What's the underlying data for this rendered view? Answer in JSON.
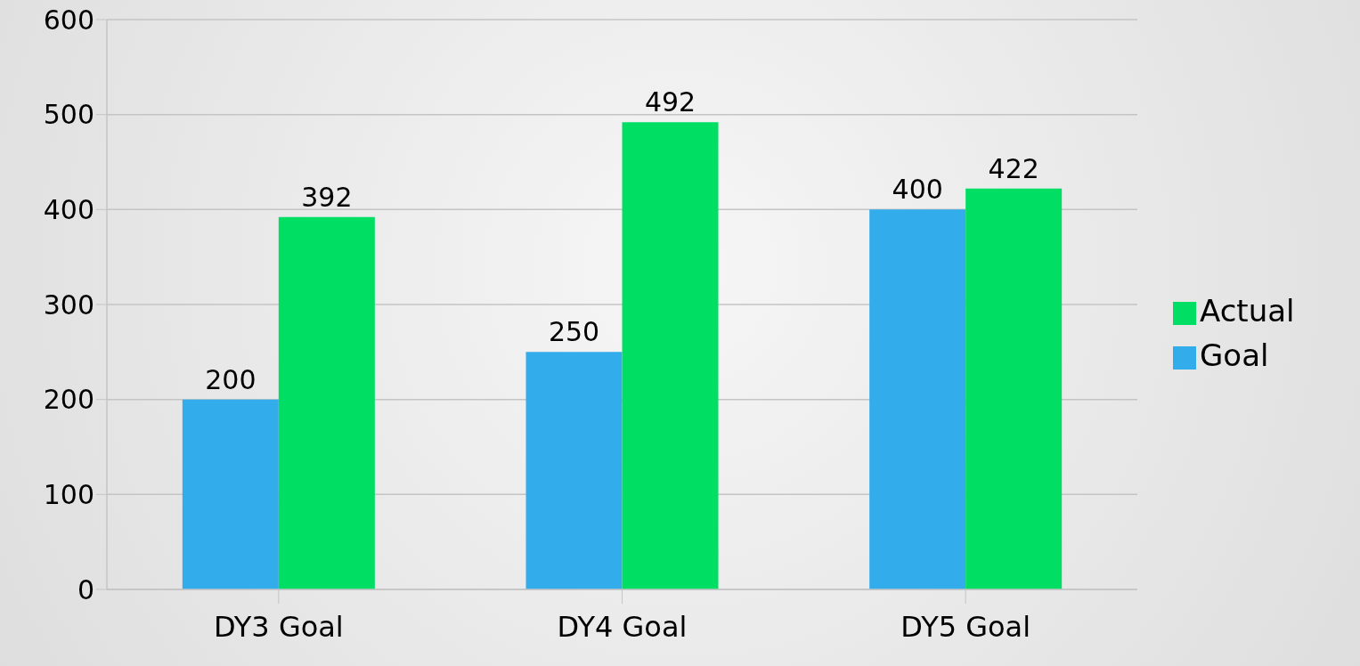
{
  "chart_data": {
    "type": "bar",
    "categories": [
      "DY3 Goal",
      "DY4 Goal",
      "DY5 Goal"
    ],
    "series": [
      {
        "name": "Goal",
        "color": "#33acec",
        "values": [
          200,
          250,
          400
        ]
      },
      {
        "name": "Actual",
        "color": "#00de64",
        "values": [
          392,
          492,
          422
        ]
      }
    ],
    "ylim": [
      0,
      600
    ],
    "yticks": [
      0,
      100,
      200,
      300,
      400,
      500,
      600
    ],
    "grid": "y",
    "legend": "right",
    "data_labels": true
  }
}
